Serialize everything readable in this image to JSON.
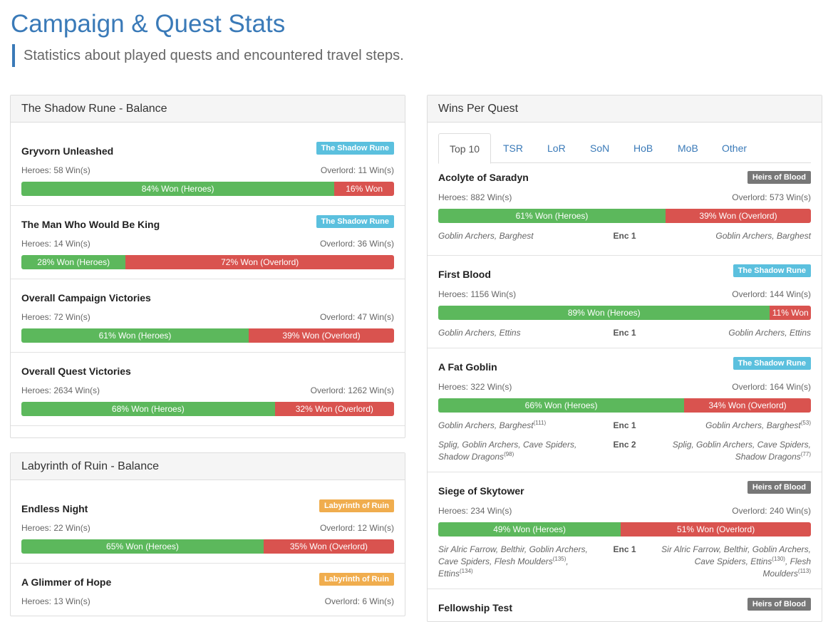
{
  "header": {
    "title": "Campaign & Quest Stats",
    "subtitle": "Statistics about played quests and encountered travel steps."
  },
  "colors": {
    "heroes": "#5cb85c",
    "overlord": "#d9534f",
    "tsr_badge": "#5bc0de",
    "lor_badge": "#f0ad4e",
    "hob_badge": "#777777"
  },
  "tsr_panel": {
    "title": "The Shadow Rune - Balance",
    "items": [
      {
        "name": "Gryvorn Unleashed",
        "badge": "The Shadow Rune",
        "heroes": "Heroes: 58 Win(s)",
        "overlord": "Overlord: 11 Win(s)",
        "hero_pct": 84,
        "hero_label": "84% Won (Heroes)",
        "ol_label": "16% Won"
      },
      {
        "name": "The Man Who Would Be King",
        "badge": "The Shadow Rune",
        "heroes": "Heroes: 14 Win(s)",
        "overlord": "Overlord: 36 Win(s)",
        "hero_pct": 28,
        "hero_label": "28% Won (Heroes)",
        "ol_label": "72% Won (Overlord)"
      },
      {
        "name": "Overall Campaign Victories",
        "badge": "",
        "heroes": "Heroes: 72 Win(s)",
        "overlord": "Overlord: 47 Win(s)",
        "hero_pct": 61,
        "hero_label": "61% Won (Heroes)",
        "ol_label": "39% Won (Overlord)"
      },
      {
        "name": "Overall Quest Victories",
        "badge": "",
        "heroes": "Heroes: 2634 Win(s)",
        "overlord": "Overlord: 1262 Win(s)",
        "hero_pct": 68,
        "hero_label": "68% Won (Heroes)",
        "ol_label": "32% Won (Overlord)"
      }
    ]
  },
  "lor_panel": {
    "title": "Labyrinth of Ruin - Balance",
    "items": [
      {
        "name": "Endless Night",
        "badge": "Labyrinth of Ruin",
        "heroes": "Heroes: 22 Win(s)",
        "overlord": "Overlord: 12 Win(s)",
        "hero_pct": 65,
        "hero_label": "65% Won (Heroes)",
        "ol_label": "35% Won (Overlord)"
      },
      {
        "name": "A Glimmer of Hope",
        "badge": "Labyrinth of Ruin",
        "heroes": "Heroes: 13 Win(s)",
        "overlord": "Overlord: 6 Win(s)"
      }
    ]
  },
  "wins_panel": {
    "title": "Wins Per Quest",
    "tabs": [
      "Top 10",
      "TSR",
      "LoR",
      "SoN",
      "HoB",
      "MoB",
      "Other"
    ],
    "quests": [
      {
        "name": "Acolyte of Saradyn",
        "badge": "Heirs of Blood",
        "heroes": "Heroes: 882 Win(s)",
        "overlord": "Overlord: 573 Win(s)",
        "hero_pct": 61,
        "hero_label": "61% Won (Heroes)",
        "ol_label": "39% Won (Overlord)",
        "enc": [
          {
            "left": "Goblin Archers, Barghest",
            "label": "Enc 1",
            "right": "Goblin Archers, Barghest"
          }
        ]
      },
      {
        "name": "First Blood",
        "badge": "The Shadow Rune",
        "heroes": "Heroes: 1156 Win(s)",
        "overlord": "Overlord: 144 Win(s)",
        "hero_pct": 89,
        "hero_label": "89% Won (Heroes)",
        "ol_label": "11% Won",
        "enc": [
          {
            "left": "Goblin Archers, Ettins",
            "label": "Enc 1",
            "right": "Goblin Archers, Ettins"
          }
        ]
      },
      {
        "name": "A Fat Goblin",
        "badge": "The Shadow Rune",
        "heroes": "Heroes: 322 Win(s)",
        "overlord": "Overlord: 164 Win(s)",
        "hero_pct": 66,
        "hero_label": "66% Won (Heroes)",
        "ol_label": "34% Won (Overlord)",
        "enc": [
          {
            "left": "Goblin Archers, Barghest",
            "left_sup": "(111)",
            "label": "Enc 1",
            "right": "Goblin Archers, Barghest",
            "right_sup": "(53)"
          },
          {
            "left": "Splig, Goblin Archers, Cave Spiders, Shadow Dragons",
            "left_sup": "(98)",
            "label": "Enc 2",
            "right": "Splig, Goblin Archers, Cave Spiders, Shadow Dragons",
            "right_sup": "(77)"
          }
        ]
      },
      {
        "name": "Siege of Skytower",
        "badge": "Heirs of Blood",
        "heroes": "Heroes: 234 Win(s)",
        "overlord": "Overlord: 240 Win(s)",
        "hero_pct": 49,
        "hero_label": "49% Won (Heroes)",
        "ol_label": "51% Won (Overlord)",
        "enc": [
          {
            "left_a": "Sir Alric Farrow, Belthir, Goblin Archers, Cave Spiders, Flesh Moulders",
            "left_a_sup": "(135)",
            "left_b": ", Ettins",
            "left_b_sup": "(134)",
            "label": "Enc 1",
            "right_a": "Sir Alric Farrow, Belthir, Goblin Archers, Cave Spiders, Ettins",
            "right_a_sup": "(130)",
            "right_b": ", Flesh Moulders",
            "right_b_sup": "(113)"
          }
        ]
      },
      {
        "name": "Fellowship Test",
        "badge": "Heirs of Blood"
      }
    ]
  }
}
